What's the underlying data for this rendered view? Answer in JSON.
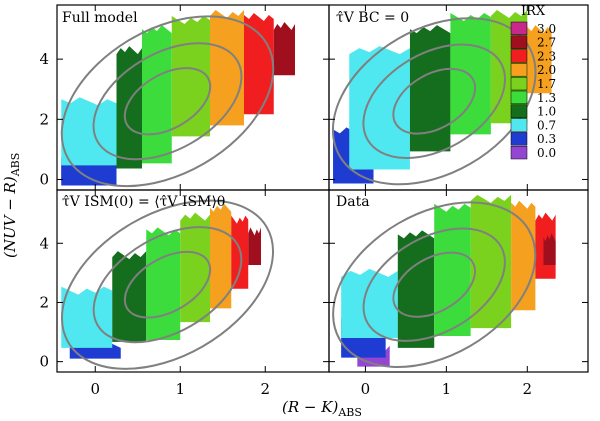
{
  "chart_data": {
    "type": "heatmap",
    "xlabel": "(R − K)",
    "xlabel_sub": "ABS",
    "ylabel": "(NUV − R)",
    "ylabel_sub": "ABS",
    "xlim": [
      -0.45,
      2.75
    ],
    "ylim": [
      -0.35,
      5.8
    ],
    "xticks": [
      0,
      1,
      2
    ],
    "yticks": [
      0,
      2,
      4
    ],
    "colorbar": {
      "title": "IRX",
      "levels": [
        "3.0",
        "2.7",
        "2.3",
        "2.0",
        "1.7",
        "1.3",
        "1.0",
        "0.7",
        "0.3",
        "0.0"
      ],
      "colors": [
        "#c8288c",
        "#a00f1e",
        "#f01e1e",
        "#f5a01e",
        "#7ad21e",
        "#3cdc3c",
        "#146e1e",
        "#50e8f0",
        "#1e3cd2",
        "#9446d2"
      ]
    },
    "contour_color": "#808080",
    "panels": [
      {
        "title": "Full model",
        "bands": [
          {
            "irx": "0.0",
            "x": [
              -0.4,
              0.05
            ],
            "y0": -0.2,
            "y1": 0.4
          },
          {
            "irx": "0.3",
            "x": [
              -0.4,
              0.25
            ],
            "y0": -0.2,
            "y1": 0.8
          },
          {
            "irx": "0.7",
            "x": [
              -0.4,
              0.25
            ],
            "y0": 0.6,
            "y1": 2.6
          },
          {
            "irx": "1.0",
            "x": [
              0.25,
              0.55
            ],
            "y0": 0.3,
            "y1": 4.3
          },
          {
            "irx": "1.3",
            "x": [
              0.55,
              0.9
            ],
            "y0": 0.6,
            "y1": 5.0
          },
          {
            "irx": "1.7",
            "x": [
              0.9,
              1.35
            ],
            "y0": 1.3,
            "y1": 5.3
          },
          {
            "irx": "2.0",
            "x": [
              1.35,
              1.75
            ],
            "y0": 1.8,
            "y1": 5.5
          },
          {
            "irx": "2.3",
            "x": [
              1.75,
              2.1
            ],
            "y0": 2.3,
            "y1": 5.4
          },
          {
            "irx": "2.7",
            "x": [
              2.1,
              2.35
            ],
            "y0": 3.4,
            "y1": 5.1
          }
        ]
      },
      {
        "title": "τ̂V BC = 0",
        "bands": [
          {
            "irx": "0.3",
            "x": [
              -0.4,
              0.1
            ],
            "y0": -0.2,
            "y1": 1.6
          },
          {
            "irx": "0.7",
            "x": [
              -0.2,
              0.55
            ],
            "y0": 0.4,
            "y1": 4.3
          },
          {
            "irx": "1.0",
            "x": [
              0.55,
              1.05
            ],
            "y0": 0.8,
            "y1": 5.0
          },
          {
            "irx": "1.3",
            "x": [
              1.05,
              1.55
            ],
            "y0": 1.5,
            "y1": 5.4
          },
          {
            "irx": "1.7",
            "x": [
              1.55,
              2.0
            ],
            "y0": 2.0,
            "y1": 5.5
          },
          {
            "irx": "2.0",
            "x": [
              2.0,
              2.3
            ],
            "y0": 2.8,
            "y1": 5.0
          }
        ]
      },
      {
        "title": "τ̂V ISM(0) = ⟨τ̂V ISM⟩θ",
        "bands": [
          {
            "irx": "0.3",
            "x": [
              -0.3,
              0.3
            ],
            "y0": 0.1,
            "y1": 0.6
          },
          {
            "irx": "0.7",
            "x": [
              -0.4,
              0.2
            ],
            "y0": 0.6,
            "y1": 2.4
          },
          {
            "irx": "1.0",
            "x": [
              0.2,
              0.6
            ],
            "y0": 0.6,
            "y1": 3.6
          },
          {
            "irx": "1.3",
            "x": [
              0.6,
              1.0
            ],
            "y0": 0.8,
            "y1": 4.4
          },
          {
            "irx": "1.7",
            "x": [
              1.0,
              1.35
            ],
            "y0": 1.2,
            "y1": 4.9
          },
          {
            "irx": "2.0",
            "x": [
              1.35,
              1.6
            ],
            "y0": 1.8,
            "y1": 5.2
          },
          {
            "irx": "2.3",
            "x": [
              1.6,
              1.8
            ],
            "y0": 2.6,
            "y1": 4.8
          },
          {
            "irx": "2.7",
            "x": [
              1.8,
              1.95
            ],
            "y0": 3.2,
            "y1": 4.4
          }
        ]
      },
      {
        "title": "Data",
        "bands": [
          {
            "irx": "0.0",
            "x": [
              -0.1,
              0.3
            ],
            "y0": -0.1,
            "y1": 0.4
          },
          {
            "irx": "0.3",
            "x": [
              -0.3,
              0.25
            ],
            "y0": 0.0,
            "y1": 1.4
          },
          {
            "irx": "0.7",
            "x": [
              -0.3,
              0.4
            ],
            "y0": 0.8,
            "y1": 3.0
          },
          {
            "irx": "1.0",
            "x": [
              0.4,
              0.85
            ],
            "y0": 0.6,
            "y1": 4.3
          },
          {
            "irx": "1.3",
            "x": [
              0.85,
              1.3
            ],
            "y0": 0.8,
            "y1": 5.2
          },
          {
            "irx": "1.7",
            "x": [
              1.3,
              1.8
            ],
            "y0": 1.2,
            "y1": 5.5
          },
          {
            "irx": "2.0",
            "x": [
              1.8,
              2.1
            ],
            "y0": 1.6,
            "y1": 5.3
          },
          {
            "irx": "2.3",
            "x": [
              2.1,
              2.35
            ],
            "y0": 2.8,
            "y1": 4.9
          },
          {
            "irx": "2.7",
            "x": [
              2.2,
              2.35
            ],
            "y0": 3.4,
            "y1": 4.2
          }
        ]
      }
    ]
  }
}
